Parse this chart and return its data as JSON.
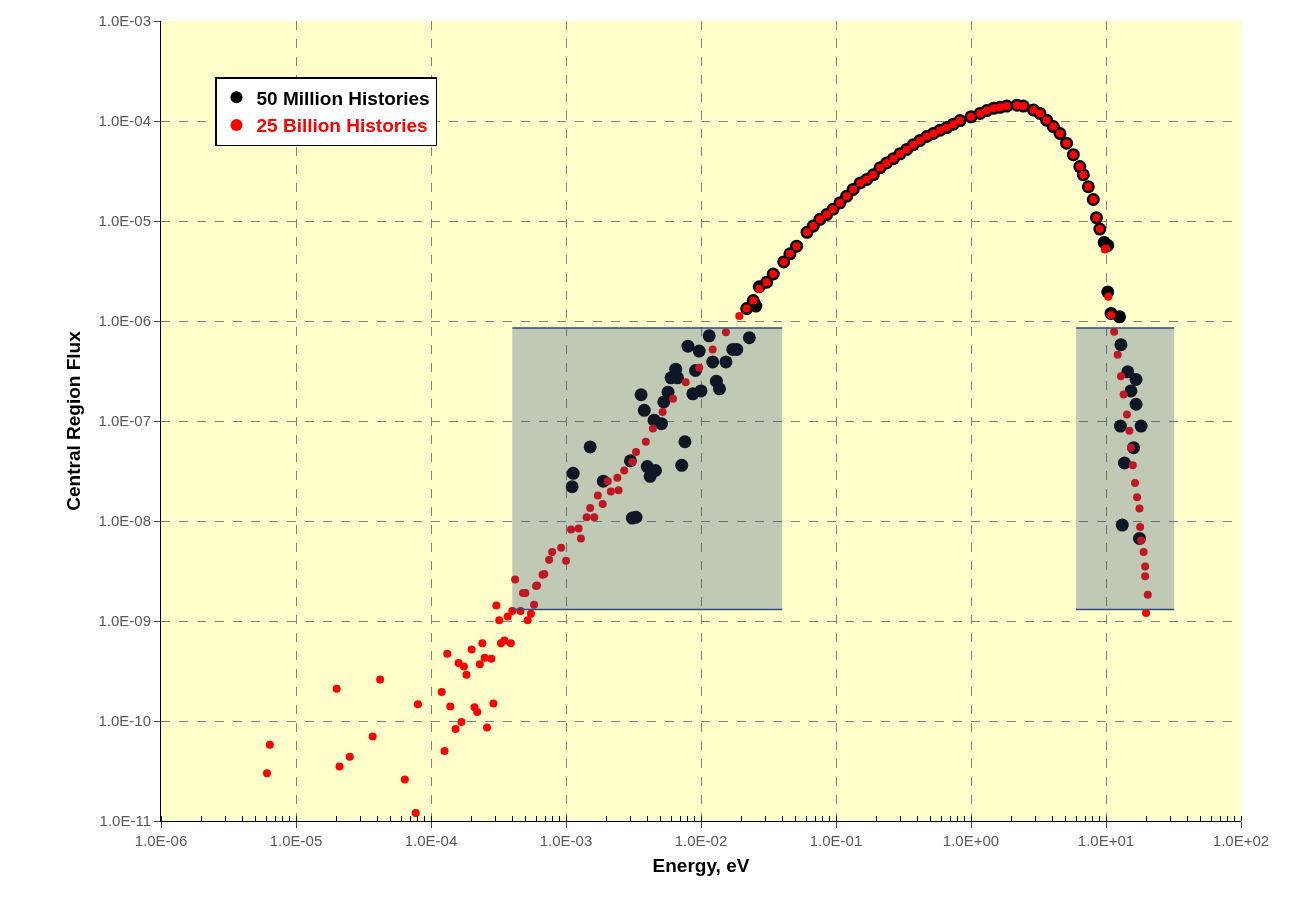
{
  "chart_data": {
    "type": "scatter",
    "xlabel": "Energy, eV",
    "ylabel": "Central Region Flux",
    "log": "xy",
    "grid": true,
    "legend": "top left",
    "marker": "circle",
    "xlim": [
      1e-06,
      100
    ],
    "ylim": [
      1e-11,
      0.001
    ],
    "xticks": [
      {
        "value": 1e-06,
        "label": "1.0E-06"
      },
      {
        "value": 1e-05,
        "label": "1.0E-05"
      },
      {
        "value": 0.0001,
        "label": "1.0E-04"
      },
      {
        "value": 0.001,
        "label": "1.0E-03"
      },
      {
        "value": 0.01,
        "label": "1.0E-02"
      },
      {
        "value": 0.1,
        "label": "1.0E-01"
      },
      {
        "value": 1,
        "label": "1.0E+00"
      },
      {
        "value": 10,
        "label": "1.0E+01"
      },
      {
        "value": 100,
        "label": "1.0E+02"
      }
    ],
    "yticks": [
      {
        "value": 1e-11,
        "label": "1.0E-11"
      },
      {
        "value": 1e-10,
        "label": "1.0E-10"
      },
      {
        "value": 1e-09,
        "label": "1.0E-09"
      },
      {
        "value": 1e-08,
        "label": "1.0E-08"
      },
      {
        "value": 1e-07,
        "label": "1.0E-07"
      },
      {
        "value": 1e-06,
        "label": "1.0E-06"
      },
      {
        "value": 1e-05,
        "label": "1.0E-05"
      },
      {
        "value": 0.0001,
        "label": "1.0E-04"
      },
      {
        "value": 0.001,
        "label": "1.0E-03"
      }
    ],
    "series": [
      {
        "name": "50 Million Histories",
        "color": "#000000",
        "x": [
          0.00113,
          0.00111,
          0.00151,
          0.00189,
          0.003,
          0.0031,
          0.0033,
          0.0036,
          0.0038,
          0.004,
          0.0042,
          0.0046,
          0.0045,
          0.0051,
          0.0057,
          0.0053,
          0.006,
          0.0067,
          0.0065,
          0.0072,
          0.0076,
          0.008,
          0.0087,
          0.0091,
          0.01,
          0.0097,
          0.0115,
          0.0122,
          0.013,
          0.0137,
          0.0153,
          0.0172,
          0.0184,
          0.0228,
          0.0255,
          0.027,
          0.041,
          0.061,
          0.095,
          0.151,
          0.237,
          0.374,
          0.59,
          1.0,
          1.47,
          2.19,
          2.9,
          4.07,
          5.1,
          6.4,
          7.4,
          8.5,
          9.0,
          9.7,
          10.3,
          10.3,
          10.9,
          12.6,
          12.9,
          14.5,
          16.7,
          15.3,
          16.7,
          12.8,
          18.2,
          16.0,
          13.7,
          13.2,
          17.7,
          0.0218,
          0.0244,
          0.0306,
          0.0343,
          0.0456,
          0.0511,
          0.0679,
          0.076,
          0.0853,
          0.107,
          0.12,
          0.134,
          0.169,
          0.189,
          0.212,
          0.266,
          0.298,
          0.334,
          0.419,
          0.47,
          0.526,
          0.661,
          0.74,
          0.83,
          1.17,
          1.31,
          1.64,
          1.84,
          2.44,
          3.24,
          3.63,
          4.56,
          5.73,
          6.79,
          8.05
        ],
        "values": [
          3e-08,
          2.2e-08,
          5.5e-08,
          2.5e-08,
          4e-08,
          1.07e-08,
          1.09e-08,
          1.83e-07,
          1.28e-07,
          3.5e-08,
          2.8e-08,
          3.2e-08,
          1.02e-07,
          9.4e-08,
          1.94e-07,
          1.55e-07,
          2.7e-07,
          2.7e-07,
          3.3e-07,
          3.6e-08,
          6.2e-08,
          5.6e-07,
          1.87e-07,
          3.2e-07,
          2e-07,
          5e-07,
          7.1e-07,
          3.9e-07,
          2.5e-07,
          2.1e-07,
          3.9e-07,
          5.2e-07,
          5.2e-07,
          6.8e-07,
          1.41e-06,
          2.2e-06,
          3.9e-06,
          7.7e-06,
          1.31e-05,
          2.4e-05,
          3.8e-05,
          5.8e-05,
          8.1e-05,
          0.00011,
          0.000134,
          0.000144,
          0.000129,
          8.8e-05,
          6e-05,
          3.5e-05,
          2.2e-05,
          1.08e-05,
          8.3e-06,
          6.1e-06,
          5.7e-06,
          1.95e-06,
          1.19e-06,
          1.1e-06,
          5.8e-07,
          3.1e-07,
          2.6e-07,
          2e-07,
          1.47e-07,
          8.9e-08,
          8.9e-08,
          5.4e-08,
          3.8e-08,
          9.1e-09,
          6.7e-09,
          1.33e-06,
          1.6e-06,
          2.44e-06,
          2.95e-06,
          4.7e-06,
          5.6e-06,
          8.9e-06,
          1.04e-05,
          1.16e-05,
          1.52e-05,
          1.77e-05,
          2.07e-05,
          2.6e-05,
          2.9e-05,
          3.4e-05,
          4.2e-05,
          4.7e-05,
          5.2e-05,
          6.4e-05,
          7e-05,
          7.5e-05,
          8.6e-05,
          9.3e-05,
          0.000101,
          0.000119,
          0.000127,
          0.000137,
          0.000141,
          0.000141,
          0.000119,
          0.000102,
          7.5e-05,
          4.6e-05,
          2.9e-05,
          1.64e-05
        ]
      },
      {
        "name": "25 Billion Histories",
        "color": "#ff0000",
        "x": [
          6.1e-06,
          6.4e-06,
          2e-05,
          2.1e-05,
          2.5e-05,
          3.7e-05,
          4.2e-05,
          6.4e-05,
          7.7e-05,
          8e-05,
          0.00012,
          0.000126,
          0.000139,
          0.000132,
          0.000152,
          0.000168,
          0.00016,
          0.000175,
          0.000183,
          0.0002,
          0.00021,
          0.00022,
          0.00023,
          0.00024,
          0.00025,
          0.00028,
          0.00026,
          0.00029,
          0.000305,
          0.00032,
          0.00033,
          0.00035,
          0.00039,
          0.00037,
          0.0004,
          0.00046,
          0.00052,
          0.00055,
          0.00058,
          0.00042,
          0.0005,
          0.00061,
          0.00069,
          0.00048,
          0.0006,
          0.00067,
          0.00079,
          0.00075,
          0.00092,
          0.001,
          0.00109,
          0.00129,
          0.00124,
          0.00142,
          0.00162,
          0.00151,
          0.00172,
          0.00187,
          0.00204,
          0.00215,
          0.00245,
          0.0024,
          0.0027,
          0.0031,
          0.0033,
          0.0039,
          0.0044,
          0.0052,
          0.0062,
          0.0077,
          0.0097,
          0.0122,
          0.0153,
          0.0192,
          0.027,
          0.041,
          0.061,
          0.095,
          0.151,
          0.237,
          0.374,
          0.59,
          1.0,
          1.47,
          2.19,
          2.9,
          4.07,
          5.1,
          6.4,
          7.4,
          8.5,
          9.0,
          9.8,
          10.0,
          10.4,
          10.9,
          11.5,
          12.2,
          12.9,
          13.5,
          14.3,
          14.9,
          15.3,
          15.8,
          16.4,
          17.0,
          17.7,
          17.9,
          18.2,
          19.0,
          19.5,
          19.5,
          20.4,
          19.8,
          0.0218,
          0.0244,
          0.0306,
          0.0343,
          0.0456,
          0.0511,
          0.0679,
          0.076,
          0.0853,
          0.107,
          0.12,
          0.134,
          0.169,
          0.189,
          0.212,
          0.266,
          0.298,
          0.334,
          0.419,
          0.47,
          0.526,
          0.661,
          0.74,
          0.83,
          1.17,
          1.31,
          1.64,
          1.84,
          2.44,
          3.24,
          3.63,
          4.56,
          5.73,
          6.79,
          8.05
        ],
        "values": [
          3e-11,
          5.8e-11,
          2.1e-10,
          3.5e-11,
          4.4e-11,
          7e-11,
          2.6e-10,
          2.6e-11,
          1.2e-11,
          1.47e-10,
          1.95e-10,
          5e-11,
          1.4e-10,
          4.7e-10,
          8.3e-11,
          9.8e-11,
          3.8e-10,
          3.5e-10,
          2.9e-10,
          5.2e-10,
          1.37e-10,
          1.23e-10,
          3.7e-10,
          6e-10,
          4.3e-10,
          4.2e-10,
          8.6e-11,
          1.5e-10,
          1.43e-09,
          1.02e-09,
          6e-10,
          6.4e-10,
          6e-10,
          1.11e-09,
          1.26e-09,
          1.26e-09,
          1.02e-09,
          1.18e-09,
          1.45e-09,
          2.6e-09,
          1.9e-09,
          2.26e-09,
          2.95e-09,
          1.9e-09,
          2.24e-09,
          2.9e-09,
          4.9e-09,
          4.1e-09,
          5.4e-09,
          4e-09,
          8.2e-09,
          6.7e-09,
          8.4e-09,
          1.09e-08,
          1.09e-08,
          1.35e-08,
          1.8e-08,
          1.48e-08,
          2.5e-08,
          1.97e-08,
          2.03e-08,
          2.7e-08,
          3.2e-08,
          3.9e-08,
          4.9e-08,
          6.2e-08,
          8.4e-08,
          1.23e-07,
          1.67e-07,
          2.44e-07,
          3.4e-07,
          5.2e-07,
          7.7e-07,
          1.12e-06,
          2.1e-06,
          3.9e-06,
          7.7e-06,
          1.31e-05,
          2.4e-05,
          3.8e-05,
          5.8e-05,
          8.1e-05,
          0.00011,
          0.000134,
          0.000144,
          0.000129,
          8.8e-05,
          6e-05,
          3.5e-05,
          2.2e-05,
          1.08e-05,
          8.3e-06,
          5.2e-06,
          5.3e-06,
          1.75e-06,
          1.15e-06,
          7.8e-07,
          4.6e-07,
          2.8e-07,
          1.84e-07,
          1.16e-07,
          8e-08,
          5.4e-08,
          3.6e-08,
          2.4e-08,
          1.73e-08,
          1.33e-08,
          8.7e-09,
          6.4e-09,
          4.9e-09,
          3.5e-09,
          2.8e-09,
          1.83e-09,
          1.2e-09,
          1.33e-06,
          1.6e-06,
          2.44e-06,
          2.95e-06,
          4.7e-06,
          5.6e-06,
          8.9e-06,
          1.04e-05,
          1.16e-05,
          1.52e-05,
          1.77e-05,
          2.07e-05,
          2.6e-05,
          2.9e-05,
          3.4e-05,
          4.2e-05,
          4.7e-05,
          5.2e-05,
          6.4e-05,
          7e-05,
          7.5e-05,
          8.6e-05,
          9.3e-05,
          0.000101,
          0.000119,
          0.000127,
          0.000137,
          0.000141,
          0.000141,
          0.000119,
          0.000102,
          7.5e-05,
          4.6e-05,
          2.9e-05,
          1.64e-05
        ]
      },
      {
        "type": "line",
        "marker": "none",
        "color": "#2f4b7c",
        "x": [
          0.0004,
          0.04
        ],
        "values": [
          1.3e-09,
          1.3e-09
        ]
      },
      {
        "type": "area",
        "marker": "none",
        "color": "#2f4b7c",
        "x": [
          0.0004,
          0.04
        ],
        "values": [
          8.5e-07,
          8.5e-07
        ]
      },
      {
        "type": "line",
        "marker": "none",
        "color": "#2f4b7c",
        "x": [
          6.0,
          32.0
        ],
        "values": [
          1.3e-09,
          1.3e-09
        ]
      },
      {
        "type": "area",
        "marker": "none",
        "color": "#2f4b7c",
        "x": [
          6.0,
          32.0
        ],
        "values": [
          8.5e-07,
          8.5e-07
        ]
      }
    ]
  }
}
